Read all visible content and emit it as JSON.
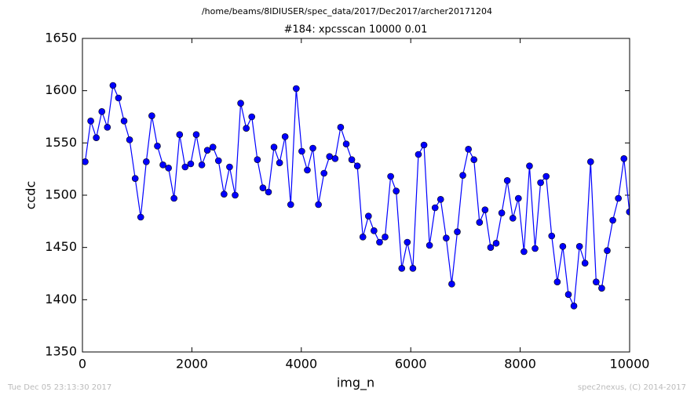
{
  "chart_data": {
    "type": "line",
    "suptitle": "/home/beams/8IDIUSER/spec_data/2017/Dec2017/archer20171204",
    "title": "#184: xpcsscan 10000 0.01",
    "x_label": "img_n",
    "y_label": "ccdc",
    "x": [
      50,
      152,
      253,
      355,
      456,
      558,
      659,
      761,
      862,
      964,
      1065,
      1167,
      1268,
      1370,
      1471,
      1573,
      1674,
      1776,
      1877,
      1979,
      2080,
      2182,
      2283,
      2385,
      2486,
      2588,
      2689,
      2791,
      2892,
      2994,
      3095,
      3197,
      3298,
      3400,
      3501,
      3603,
      3704,
      3806,
      3907,
      4009,
      4110,
      4212,
      4313,
      4415,
      4516,
      4618,
      4719,
      4821,
      4922,
      5024,
      5125,
      5227,
      5328,
      5430,
      5531,
      5633,
      5734,
      5836,
      5937,
      6039,
      6140,
      6242,
      6343,
      6445,
      6546,
      6648,
      6749,
      6851,
      6952,
      7054,
      7155,
      7257,
      7358,
      7460,
      7561,
      7663,
      7764,
      7866,
      7967,
      8069,
      8170,
      8272,
      8373,
      8475,
      8576,
      8678,
      8779,
      8881,
      8982,
      9084,
      9185,
      9287,
      9388,
      9490,
      9591,
      9693,
      9794,
      9896,
      9997
    ],
    "series": [
      {
        "name": "ccdc",
        "color": "#0000ff",
        "values": [
          1532,
          1571,
          1555,
          1580,
          1565,
          1605,
          1593,
          1571,
          1553,
          1516,
          1479,
          1532,
          1576,
          1547,
          1529,
          1526,
          1497,
          1558,
          1527,
          1530,
          1558,
          1529,
          1543,
          1546,
          1533,
          1501,
          1527,
          1500,
          1588,
          1564,
          1575,
          1534,
          1507,
          1503,
          1546,
          1531,
          1556,
          1491,
          1602,
          1542,
          1524,
          1545,
          1491,
          1521,
          1537,
          1535,
          1565,
          1549,
          1534,
          1528,
          1460,
          1480,
          1466,
          1455,
          1460,
          1518,
          1504,
          1430,
          1455,
          1430,
          1539,
          1548,
          1452,
          1488,
          1496,
          1459,
          1415,
          1465,
          1519,
          1544,
          1534,
          1474,
          1486,
          1450,
          1454,
          1483,
          1514,
          1478,
          1497,
          1446,
          1528,
          1449,
          1512,
          1518,
          1461,
          1417,
          1451,
          1405,
          1394,
          1451,
          1435,
          1532,
          1417,
          1411,
          1447,
          1476,
          1497,
          1535,
          1484
        ]
      }
    ],
    "xlim": [
      0,
      10000
    ],
    "xticks": [
      0,
      2000,
      4000,
      6000,
      8000,
      10000
    ],
    "ylim": [
      1350,
      1650
    ],
    "yticks": [
      1350,
      1400,
      1450,
      1500,
      1550,
      1600,
      1650
    ],
    "grid": false
  },
  "footer": {
    "timestamp": "Tue Dec 05 23:13:30 2017",
    "credit": "spec2nexus, (C) 2014-2017"
  }
}
